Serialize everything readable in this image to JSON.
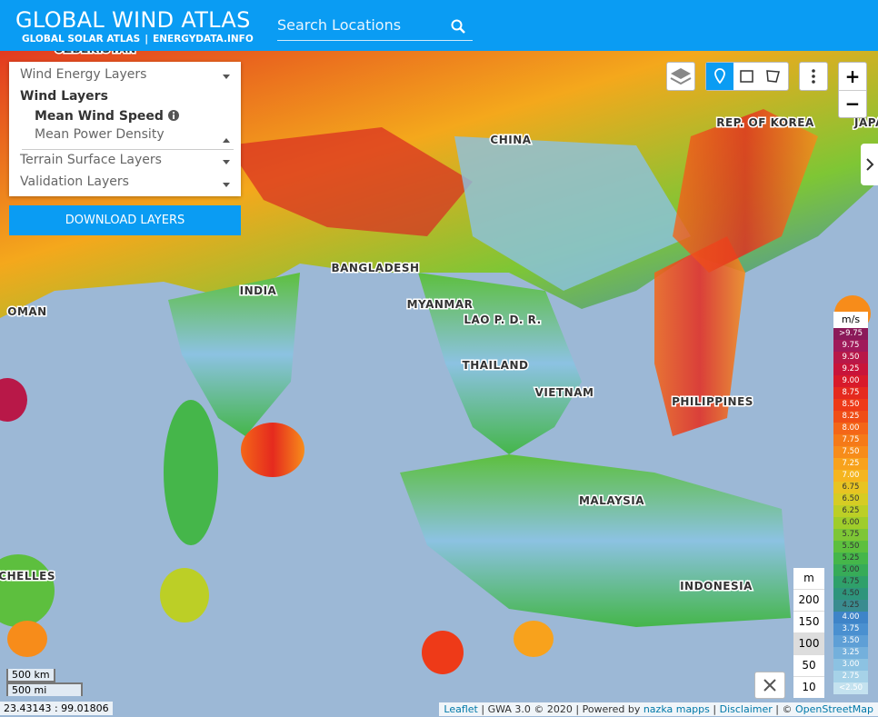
{
  "header": {
    "title": "GLOBAL WIND ATLAS",
    "links": [
      "GLOBAL SOLAR ATLAS",
      "ENERGYDATA.INFO"
    ],
    "search_placeholder": "Search Locations"
  },
  "layer_panel": {
    "groups": [
      "Wind Energy Layers",
      "Terrain Surface Layers",
      "Validation Layers"
    ],
    "subgroup": "Wind Layers",
    "items": [
      "Mean Wind Speed",
      "Mean Power Density"
    ],
    "button": "DOWNLOAD LAYERS"
  },
  "map_labels": [
    "UZBEKISTAN",
    "CHINA",
    "REP. OF KOREA",
    "JAPAN",
    "BANGLADESH",
    "INDIA",
    "OMAN",
    "MYANMAR",
    "LAO P. D. R.",
    "THAILAND",
    "VIETNAM",
    "PHILIPPINES",
    "MALAYSIA",
    "INDONESIA",
    "SEYCHELLES"
  ],
  "zoom": [
    "+",
    "−"
  ],
  "legend": {
    "unit": "m/s",
    "labels": [
      ">9.75",
      "9.75",
      "9.50",
      "9.25",
      "9.00",
      "8.75",
      "8.50",
      "8.25",
      "8.00",
      "7.75",
      "7.50",
      "7.25",
      "7.00",
      "6.75",
      "6.50",
      "6.25",
      "6.00",
      "5.75",
      "5.50",
      "5.25",
      "5.00",
      "4.75",
      "4.50",
      "4.25",
      "4.00",
      "3.75",
      "3.50",
      "3.25",
      "3.00",
      "2.75",
      "<2.50"
    ],
    "colors": [
      "#8b1a5a",
      "#a01a5a",
      "#b81848",
      "#c8143a",
      "#d81a2a",
      "#e52a1e",
      "#ee3a18",
      "#f04e16",
      "#f46618",
      "#f57a18",
      "#f78c1a",
      "#f8a21c",
      "#f5b51f",
      "#e8c422",
      "#d6cc24",
      "#bccf26",
      "#9fcd2a",
      "#7ec635",
      "#5dbf3e",
      "#45b64a",
      "#37ab58",
      "#2fa06a",
      "#2e957c",
      "#3a8c90",
      "#3e84c8",
      "#4a90d0",
      "#5e9fd6",
      "#74b0dc",
      "#8cc2e2",
      "#a6d2e8",
      "#c4e2ef"
    ]
  },
  "height_selector": {
    "unit": "m",
    "options": [
      "200",
      "150",
      "100",
      "50",
      "10"
    ]
  },
  "scale": [
    "500 km",
    "500 mi"
  ],
  "coordinates": "23.43143 : 99.01806",
  "attribution": [
    "Leaflet",
    " | GWA 3.0 © 2020 | Powered by ",
    "nazka mapps",
    " | ",
    "Disclaimer",
    " | © ",
    "OpenStreetMap"
  ]
}
